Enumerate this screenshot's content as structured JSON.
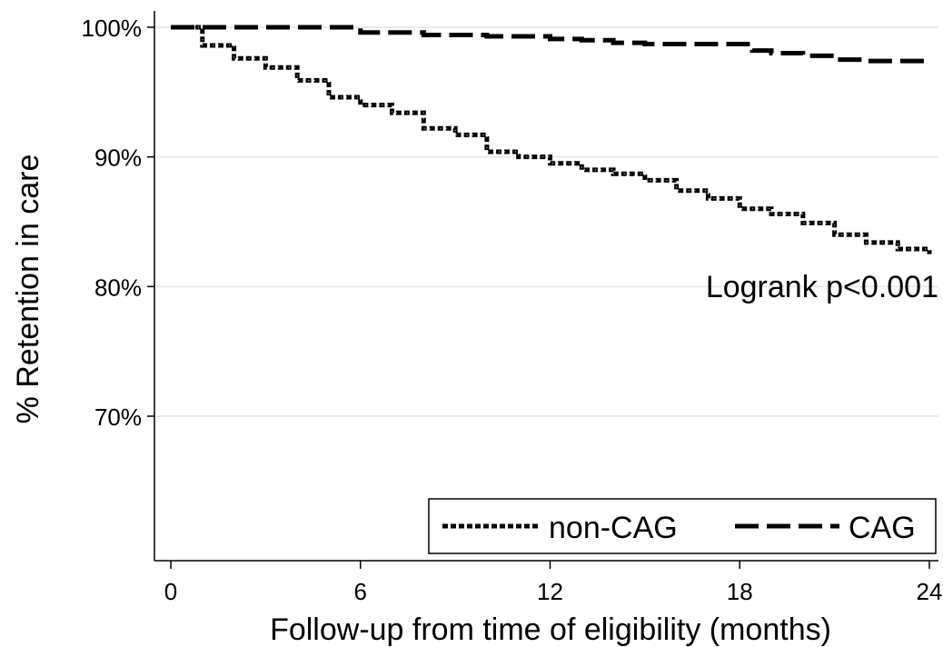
{
  "chart_data": {
    "type": "line",
    "xlabel": "Follow-up from time of eligibility (months)",
    "ylabel": "% Retention in care",
    "xlim": [
      0,
      24
    ],
    "ylim": [
      60,
      100
    ],
    "x_ticks": [
      0,
      6,
      12,
      18,
      24
    ],
    "x_tick_labels": [
      "0",
      "6",
      "12",
      "18",
      "24"
    ],
    "y_ticks": [
      70,
      80,
      90,
      100
    ],
    "y_tick_labels": [
      "70%",
      "80%",
      "90%",
      "100%"
    ],
    "grid": true,
    "annotation": "Logrank p<0.001",
    "legend_position": "bottom-right",
    "series": [
      {
        "name": "non-CAG",
        "style": "dotted",
        "color": "#000000",
        "x": [
          0,
          1,
          2,
          3,
          4,
          5,
          6,
          7,
          8,
          9,
          10,
          11,
          12,
          13,
          14,
          15,
          16,
          17,
          18,
          19,
          20,
          21,
          22,
          23,
          24
        ],
        "y": [
          100,
          98.6,
          97.6,
          96.9,
          95.9,
          94.6,
          94.0,
          93.4,
          92.2,
          91.7,
          90.4,
          90.0,
          89.5,
          89.0,
          88.7,
          88.2,
          87.4,
          86.8,
          86.0,
          85.6,
          84.9,
          84.0,
          83.4,
          82.9,
          82.5
        ]
      },
      {
        "name": "CAG",
        "style": "dashed",
        "color": "#000000",
        "x": [
          0,
          5,
          6,
          7,
          8,
          9,
          10,
          11,
          12,
          13,
          14,
          15,
          16,
          17,
          17.8,
          18.4,
          19,
          20,
          21,
          22,
          23,
          24
        ],
        "y": [
          100,
          100,
          99.6,
          99.6,
          99.4,
          99.4,
          99.3,
          99.3,
          99.1,
          99.0,
          98.8,
          98.7,
          98.7,
          98.7,
          98.7,
          98.2,
          98.0,
          97.8,
          97.5,
          97.4,
          97.4,
          97.4
        ]
      }
    ]
  }
}
